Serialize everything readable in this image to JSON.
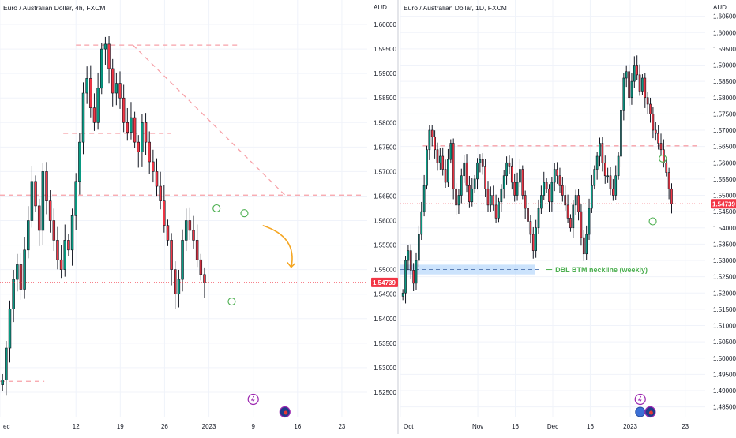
{
  "colors": {
    "up": "#089981",
    "down": "#f23645",
    "bar_neutral": "#131722",
    "grid": "#f0f3fa",
    "axis_text": "#131722",
    "dashed_level": "#f7a1a8",
    "price_line": "#f23645",
    "price_badge_bg": "#f23645",
    "price_badge_text": "#ffffff",
    "neckline_zone": "#bbd9fb",
    "neckline_text": "#4caf50",
    "arrow": "#f5a623",
    "circle_marker": "#4caf50",
    "divider": "#d1d4dc"
  },
  "chart_data": [
    {
      "type": "candlestick",
      "title": "Euro / Australian Dollar, 4h, FXCM",
      "currency_label": "AUD",
      "last_price_label": "1.54739",
      "last_price": 1.54739,
      "ylim": [
        1.52,
        1.605
      ],
      "y_ticks": [
        "1.60000",
        "1.59500",
        "1.59000",
        "1.58500",
        "1.58000",
        "1.57500",
        "1.57000",
        "1.56500",
        "1.56000",
        "1.55500",
        "1.55000",
        "1.54500",
        "1.54000",
        "1.53500",
        "1.53000",
        "1.52500"
      ],
      "y_tick_values": [
        1.6,
        1.595,
        1.59,
        1.585,
        1.58,
        1.575,
        1.57,
        1.565,
        1.56,
        1.555,
        1.55,
        1.545,
        1.54,
        1.535,
        1.53,
        1.525
      ],
      "x_ticks": [
        "ec",
        "12",
        "19",
        "26",
        "2023",
        "9",
        "16",
        "23"
      ],
      "x_tick_values": [
        0,
        12,
        19,
        26,
        33,
        40,
        47,
        54
      ],
      "xlim": [
        0,
        58
      ],
      "closes": [
        1.5275,
        1.534,
        1.542,
        1.548,
        1.551,
        1.546,
        1.554,
        1.56,
        1.568,
        1.563,
        1.558,
        1.57,
        1.564,
        1.56,
        1.556,
        1.552,
        1.55,
        1.556,
        1.554,
        1.561,
        1.568,
        1.576,
        1.586,
        1.589,
        1.583,
        1.58,
        1.587,
        1.595,
        1.596,
        1.591,
        1.586,
        1.588,
        1.585,
        1.58,
        1.578,
        1.581,
        1.576,
        1.574,
        1.58,
        1.576,
        1.572,
        1.57,
        1.567,
        1.564,
        1.559,
        1.556,
        1.55,
        1.545,
        1.548,
        1.556,
        1.56,
        1.558,
        1.556,
        1.552,
        1.549,
        1.5474
      ],
      "candle_x_start": 0.4,
      "candle_x_step": 0.58,
      "levels": [
        {
          "y": 1.5958,
          "x0": 12,
          "x1": 38
        },
        {
          "y": 1.5778,
          "x0": 10,
          "x1": 27
        },
        {
          "y": 1.5652,
          "x0": 0,
          "x1": 57
        },
        {
          "y": 1.5272,
          "x0": 0,
          "x1": 7
        }
      ],
      "trendline": {
        "x0": 21,
        "y0": 1.5958,
        "x1": 45,
        "y1": 1.5652
      },
      "price_line_y": 1.54739,
      "markers": [
        {
          "x": 34.2,
          "y": 1.5625,
          "symbol": "circle-arrow-down"
        },
        {
          "x": 38.6,
          "y": 1.5615,
          "symbol": "circle-arrow-down"
        },
        {
          "x": 36.6,
          "y": 1.5435,
          "symbol": "circle-arrow-up"
        }
      ],
      "arrow": {
        "x0": 41.5,
        "y0": 1.559,
        "x1": 46,
        "y1": 1.5505
      },
      "event_icons": [
        "lightning-icon",
        "flag-icon"
      ],
      "event_x": [
        40,
        45
      ]
    },
    {
      "type": "candlestick",
      "title": "Euro / Australian Dollar, 1D, FXCM",
      "currency_label": "AUD",
      "last_price_label": "1.54739",
      "last_price": 1.54739,
      "ylim": [
        1.482,
        1.61
      ],
      "y_ticks": [
        "1.60500",
        "1.60000",
        "1.59500",
        "1.59000",
        "1.58500",
        "1.58000",
        "1.57500",
        "1.57000",
        "1.56500",
        "1.56000",
        "1.55500",
        "1.55000",
        "1.54500",
        "1.54000",
        "1.53500",
        "1.53000",
        "1.52500",
        "1.52000",
        "1.51500",
        "1.51000",
        "1.50500",
        "1.50000",
        "1.49500",
        "1.49000",
        "1.48500"
      ],
      "y_tick_values": [
        1.605,
        1.6,
        1.595,
        1.59,
        1.585,
        1.58,
        1.575,
        1.57,
        1.565,
        1.56,
        1.555,
        1.55,
        1.545,
        1.54,
        1.535,
        1.53,
        1.525,
        1.52,
        1.515,
        1.51,
        1.505,
        1.5,
        1.495,
        1.49,
        1.485
      ],
      "x_ticks": [
        "Oct",
        "Nov",
        "16",
        "Dec",
        "16",
        "2023",
        "23"
      ],
      "x_tick_values": [
        0,
        31,
        46,
        61,
        76,
        92,
        114
      ],
      "xlim": [
        0,
        122
      ],
      "closes": [
        1.52,
        1.53,
        1.533,
        1.527,
        1.523,
        1.53,
        1.538,
        1.545,
        1.553,
        1.564,
        1.57,
        1.568,
        1.564,
        1.56,
        1.562,
        1.558,
        1.554,
        1.561,
        1.566,
        1.552,
        1.547,
        1.55,
        1.556,
        1.56,
        1.553,
        1.548,
        1.552,
        1.555,
        1.56,
        1.561,
        1.559,
        1.552,
        1.547,
        1.55,
        1.547,
        1.543,
        1.548,
        1.552,
        1.556,
        1.56,
        1.559,
        1.554,
        1.55,
        1.554,
        1.558,
        1.55,
        1.546,
        1.542,
        1.538,
        1.533,
        1.54,
        1.546,
        1.55,
        1.554,
        1.552,
        1.548,
        1.554,
        1.558,
        1.556,
        1.553,
        1.55,
        1.547,
        1.543,
        1.54,
        1.547,
        1.55,
        1.545,
        1.537,
        1.532,
        1.538,
        1.546,
        1.553,
        1.558,
        1.562,
        1.566,
        1.56,
        1.556,
        1.556,
        1.552,
        1.55,
        1.556,
        1.562,
        1.576,
        1.586,
        1.588,
        1.58,
        1.585,
        1.59,
        1.587,
        1.582,
        1.586,
        1.58,
        1.578,
        1.575,
        1.57,
        1.569,
        1.566,
        1.564,
        1.56,
        1.557,
        1.552,
        1.5474
      ],
      "candle_x_start": 1,
      "candle_x_step": 1.065,
      "levels": [
        {
          "y": 1.5652,
          "x0": 9,
          "x1": 120
        }
      ],
      "zone": {
        "y0": 1.5257,
        "y1": 1.5287,
        "x0": 0,
        "x1": 54
      },
      "neckline_label": "DBL BTM neckline (weekly)",
      "neckline_y": 1.5272,
      "neckline_label_x": 62,
      "price_line_y": 1.54739,
      "markers": [
        {
          "x": 105,
          "y": 1.5613,
          "symbol": "circle-arrow-down"
        },
        {
          "x": 101,
          "y": 1.542,
          "symbol": "circle-arrow-up"
        }
      ],
      "event_icons": [
        "lightning-icon",
        "globe-icon",
        "flag-icon"
      ],
      "event_x": [
        96,
        96,
        100
      ]
    }
  ]
}
